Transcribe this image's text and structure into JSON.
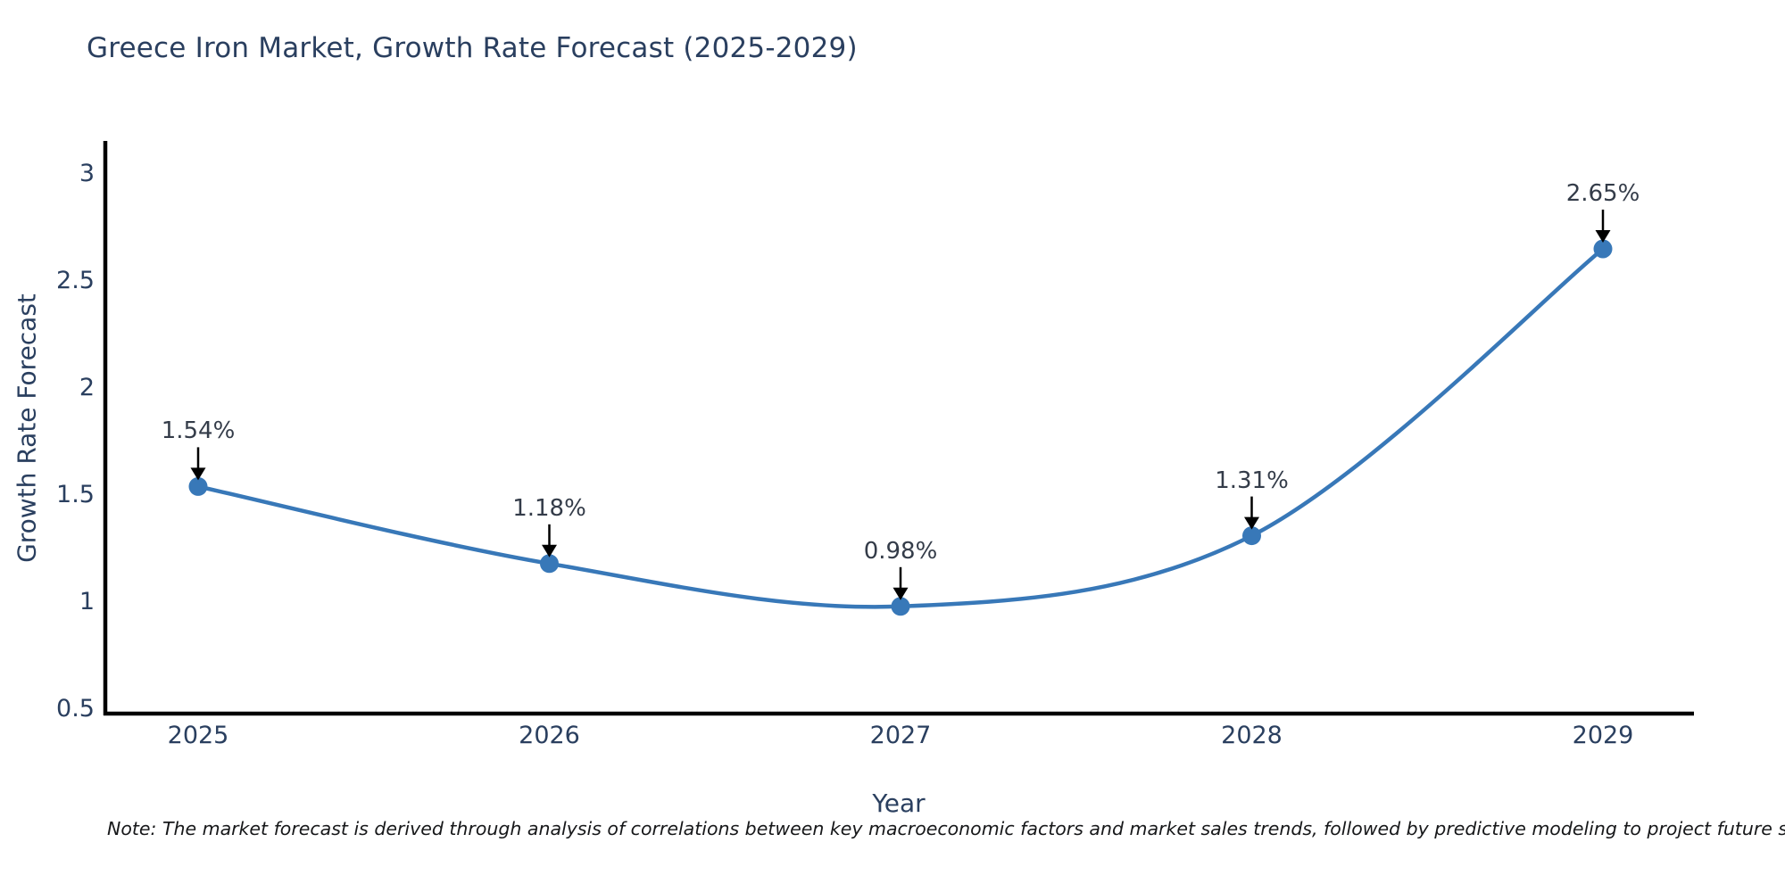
{
  "note": "Note: The market forecast is derived through analysis of correlations between key macroeconomic factors and market sales trends, followed by predictive modeling to project future sales",
  "chart_data": {
    "type": "line",
    "title": "Greece Iron Market, Growth Rate Forecast (2025-2029)",
    "xlabel": "Year",
    "ylabel": "Growth Rate Forecast",
    "categories": [
      "2025",
      "2026",
      "2027",
      "2028",
      "2029"
    ],
    "values": [
      1.54,
      1.18,
      0.98,
      1.31,
      2.65
    ],
    "point_labels": [
      "1.54%",
      "1.18%",
      "0.98%",
      "1.31%",
      "2.65%"
    ],
    "ylim": [
      0.5,
      3
    ],
    "yticks": [
      0.5,
      1,
      1.5,
      2,
      2.5,
      3
    ],
    "grid": false,
    "legend": false,
    "line_style": "smooth",
    "line_color": "#3878b8",
    "marker_color": "#3878b8",
    "axis_color": "#000000",
    "annotation_arrow_color": "#000000",
    "text_color": "#2a3f5f"
  }
}
